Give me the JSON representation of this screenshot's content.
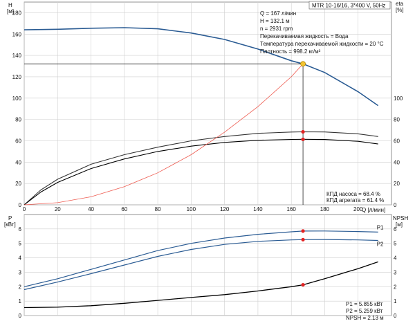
{
  "chart_data": [
    {
      "type": "line",
      "header": "MTR 10-16/16, 3*400 V, 50Hz",
      "x_axis": {
        "label": "Q [л/мин]",
        "range": [
          0,
          220
        ],
        "ticks": [
          0,
          20,
          40,
          60,
          80,
          100,
          120,
          140,
          160,
          180,
          200
        ]
      },
      "y_left": {
        "label": "H",
        "unit": "[м]",
        "range": [
          0,
          190
        ],
        "ticks": [
          0,
          20,
          40,
          60,
          80,
          100,
          120,
          140,
          160,
          180
        ]
      },
      "y_right": {
        "label": "eta",
        "unit": "[%]",
        "range": [
          0,
          190
        ],
        "ticks": [
          0,
          20,
          40,
          60,
          80,
          100
        ]
      },
      "grid": true,
      "series": [
        {
          "curve": "H",
          "color": "#2a5b93",
          "x": [
            0,
            20,
            40,
            60,
            80,
            100,
            120,
            140,
            160,
            167,
            180,
            200,
            212
          ],
          "y": [
            164,
            164.5,
            165.5,
            166,
            165,
            161,
            155,
            146,
            135,
            132.1,
            124,
            106,
            93
          ]
        },
        {
          "curve": "eta_pump",
          "color": "#333333",
          "x": [
            0,
            10,
            20,
            40,
            60,
            80,
            100,
            120,
            140,
            160,
            167,
            180,
            200,
            212
          ],
          "y": [
            0,
            14,
            24,
            38,
            47,
            54,
            60,
            64,
            67,
            68.2,
            68.4,
            68.3,
            66.5,
            64
          ]
        },
        {
          "curve": "eta_unit",
          "color": "#000000",
          "x": [
            0,
            10,
            20,
            40,
            60,
            80,
            100,
            120,
            140,
            160,
            167,
            180,
            200,
            212
          ],
          "y": [
            0,
            12,
            21,
            34,
            43,
            50,
            55,
            58.5,
            60.5,
            61.3,
            61.4,
            61.2,
            59.5,
            57
          ]
        },
        {
          "curve": "system",
          "color": "#ee5a4f",
          "x": [
            0,
            20,
            40,
            60,
            80,
            100,
            120,
            140,
            160,
            167
          ],
          "y": [
            0,
            2,
            7.5,
            17,
            30,
            47,
            68,
            92,
            120,
            132.1
          ]
        }
      ],
      "operating_point": {
        "Q": 167,
        "H": 132.1,
        "eta_pump": 68.4,
        "eta_unit": 61.4
      },
      "annotations": [
        "Q = 167 л/мин",
        "H = 132.1 м",
        "n = 2931 rpm",
        "Перекачиваемая жидкость = Вода",
        "Температура перекачиваемой жидкости = 20 °C",
        "Плотность = 998.2 кг/м³"
      ],
      "efficiency_labels": [
        "КПД насоса = 68.4 %",
        "КПД агрегата = 61.4 %"
      ]
    },
    {
      "type": "line",
      "x_axis": {
        "range": [
          0,
          220
        ]
      },
      "y_left": {
        "label": "P",
        "unit": "[кВт]",
        "range": [
          0,
          7
        ],
        "ticks": [
          0,
          1,
          2,
          3,
          4,
          5,
          6
        ]
      },
      "y_right": {
        "label": "NPSH",
        "unit": "[м]",
        "range": [
          0,
          7
        ],
        "ticks": [
          0,
          1,
          2,
          3,
          4,
          5,
          6
        ]
      },
      "grid": true,
      "series": [
        {
          "name": "P1",
          "color": "#2a5b93",
          "x": [
            0,
            20,
            40,
            60,
            80,
            100,
            120,
            140,
            160,
            167,
            180,
            200,
            212
          ],
          "y": [
            2.0,
            2.55,
            3.2,
            3.85,
            4.5,
            5.0,
            5.37,
            5.63,
            5.8,
            5.855,
            5.86,
            5.82,
            5.78
          ]
        },
        {
          "name": "P2",
          "color": "#2a5b93",
          "x": [
            0,
            20,
            40,
            60,
            80,
            100,
            120,
            140,
            160,
            167,
            180,
            200,
            212
          ],
          "y": [
            1.8,
            2.32,
            2.9,
            3.5,
            4.1,
            4.58,
            4.93,
            5.14,
            5.24,
            5.259,
            5.27,
            5.24,
            5.2
          ]
        },
        {
          "curve": "NPSH",
          "color": "#000000",
          "x": [
            0,
            20,
            40,
            60,
            80,
            100,
            120,
            140,
            160,
            167,
            180,
            200,
            212
          ],
          "y": [
            0.55,
            0.58,
            0.68,
            0.85,
            1.05,
            1.25,
            1.45,
            1.7,
            2.0,
            2.13,
            2.55,
            3.25,
            3.72
          ]
        }
      ],
      "operating_point": {
        "Q": 167,
        "P1": 5.855,
        "P2": 5.259,
        "NPSH": 2.13
      },
      "value_labels": [
        "P1 = 5.855 кВт",
        "P2 = 5.259 кВт",
        "NPSH = 2.13 м"
      ]
    }
  ]
}
